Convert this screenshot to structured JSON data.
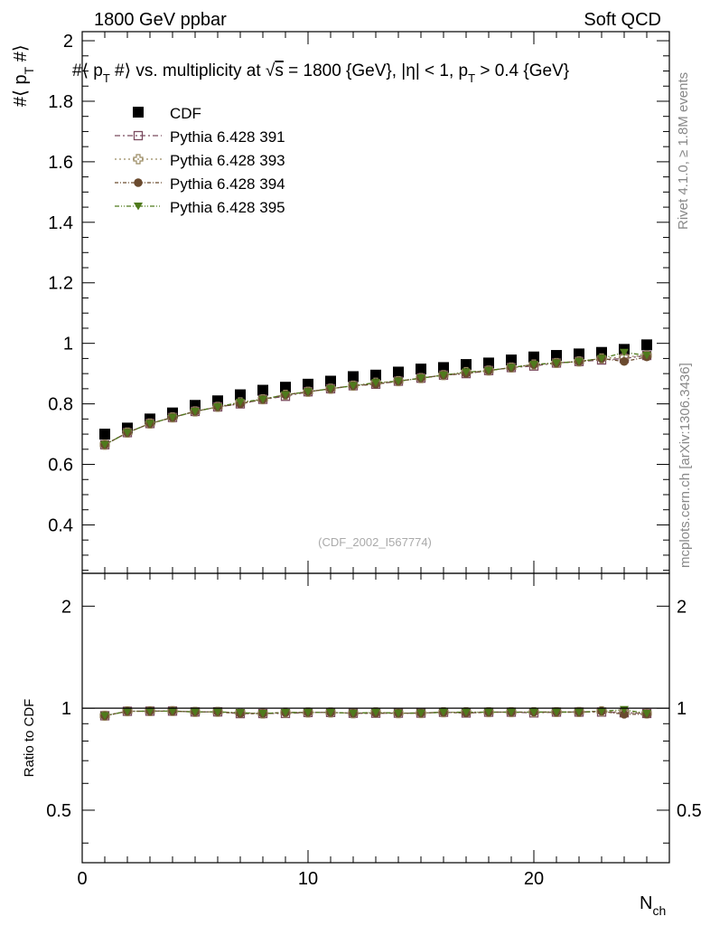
{
  "header": {
    "left": "1800 GeV ppbar",
    "right": "Soft QCD"
  },
  "side": {
    "rivet": "Rivet 4.1.0, ≥ 1.8M events",
    "mcplots": "mcplots.cern.ch [arXiv:1306.3436]"
  },
  "colors": {
    "cdf": "#000000",
    "p391": "#7a4a5e",
    "p393": "#9a8a62",
    "p394": "#6a4a2e",
    "p395": "#4f7a1c"
  },
  "chart_data": {
    "type": "scatter",
    "title": "#⟨ p_T #⟩ vs. multiplicity at √s = 1800 {GeV}, |η| < 1, p_T > 0.4 {GeV}",
    "title_parts": {
      "a": "#⟨ p",
      "b": "T",
      "c": " #⟩ vs. multiplicity at ",
      "d": "√",
      "e": "s",
      "f": " = 1800 {GeV}, |η| < 1, p",
      "g": "T",
      "h": " > 0.4 {GeV}"
    },
    "ylabel": {
      "main": "#⟨ p",
      "sub": "T",
      "end": " #⟩"
    },
    "xlabel": {
      "main": "N",
      "sub": "ch"
    },
    "ratio_ylabel": "Ratio to CDF",
    "watermark": "(CDF_2002_I567774)",
    "xlim": [
      0,
      26
    ],
    "ylim": [
      0.24,
      2.03
    ],
    "ratio_ylim": [
      0.35,
      2.5
    ],
    "x_ticks": [
      0,
      10,
      20
    ],
    "x_tick_labels": [
      "0",
      "10",
      "20"
    ],
    "y_ticks": [
      0.4,
      0.6,
      0.8,
      1,
      1.2,
      1.4,
      1.6,
      1.8,
      2
    ],
    "y_tick_labels": [
      "0.4",
      "0.6",
      "0.8",
      "1",
      "1.2",
      "1.4",
      "1.6",
      "1.8",
      "2"
    ],
    "ratio_y_ticks": [
      0.5,
      1,
      2
    ],
    "ratio_y_tick_labels": [
      "0.5",
      "1",
      "2"
    ],
    "x": [
      1,
      2,
      3,
      4,
      5,
      6,
      7,
      8,
      9,
      10,
      11,
      12,
      13,
      14,
      15,
      16,
      17,
      18,
      19,
      20,
      21,
      22,
      23,
      24,
      25
    ],
    "data": {
      "name": "CDF",
      "values": [
        0.7,
        0.72,
        0.75,
        0.77,
        0.795,
        0.81,
        0.83,
        0.845,
        0.855,
        0.865,
        0.875,
        0.89,
        0.895,
        0.905,
        0.915,
        0.92,
        0.93,
        0.935,
        0.945,
        0.955,
        0.96,
        0.965,
        0.97,
        0.98,
        0.995
      ]
    },
    "series": [
      {
        "name": "Pythia 6.428 391",
        "marker": "open-square",
        "color": "#7a4a5e",
        "values": [
          0.665,
          0.705,
          0.735,
          0.755,
          0.775,
          0.79,
          0.8,
          0.815,
          0.825,
          0.84,
          0.85,
          0.86,
          0.865,
          0.875,
          0.885,
          0.895,
          0.9,
          0.91,
          0.92,
          0.925,
          0.935,
          0.94,
          0.945,
          0.95,
          0.96
        ]
      },
      {
        "name": "Pythia 6.428 393",
        "marker": "open-cross",
        "color": "#9a8a62",
        "values": [
          0.665,
          0.705,
          0.735,
          0.755,
          0.775,
          0.79,
          0.805,
          0.815,
          0.83,
          0.84,
          0.85,
          0.86,
          0.87,
          0.875,
          0.885,
          0.895,
          0.905,
          0.91,
          0.92,
          0.93,
          0.935,
          0.94,
          0.95,
          0.955,
          0.96
        ]
      },
      {
        "name": "Pythia 6.428 394",
        "marker": "circle",
        "color": "#6a4a2e",
        "values": [
          0.665,
          0.705,
          0.735,
          0.755,
          0.775,
          0.79,
          0.8,
          0.815,
          0.83,
          0.84,
          0.85,
          0.86,
          0.865,
          0.875,
          0.885,
          0.895,
          0.9,
          0.91,
          0.92,
          0.93,
          0.935,
          0.94,
          0.95,
          0.94,
          0.955
        ]
      },
      {
        "name": "Pythia 6.428 395",
        "marker": "triangle-down",
        "color": "#4f7a1c",
        "values": [
          0.665,
          0.705,
          0.735,
          0.755,
          0.775,
          0.79,
          0.805,
          0.815,
          0.83,
          0.84,
          0.85,
          0.86,
          0.87,
          0.875,
          0.885,
          0.895,
          0.905,
          0.91,
          0.92,
          0.93,
          0.935,
          0.94,
          0.95,
          0.97,
          0.96
        ]
      }
    ]
  }
}
